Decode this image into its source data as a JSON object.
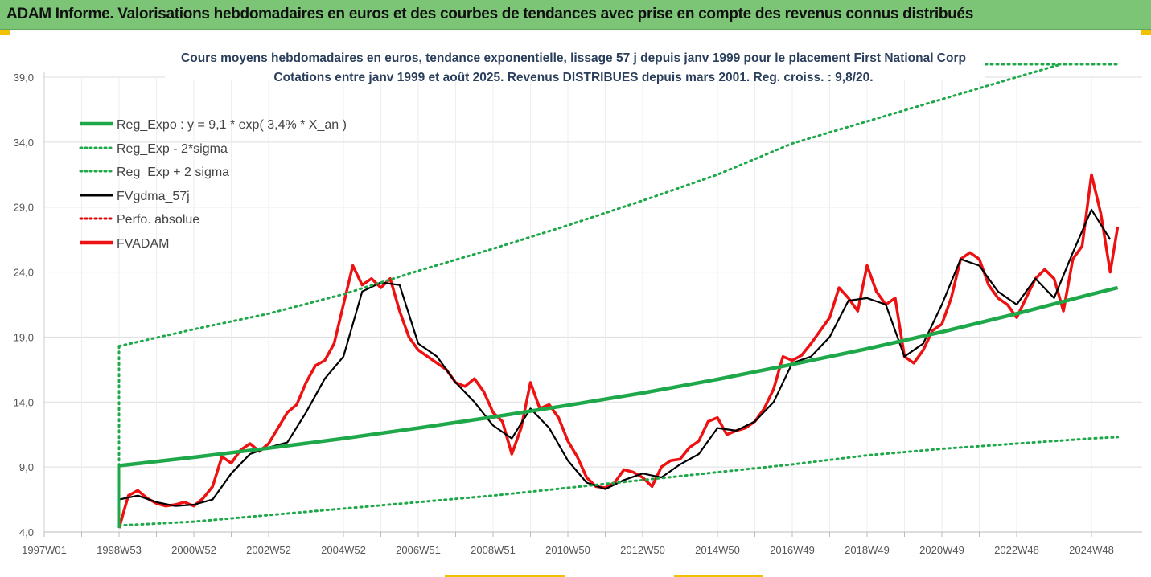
{
  "banner": {
    "title": "ADAM Informe. Valorisations hebdomadaires en euros et des courbes de tendances avec prise en compte des revenus connus distribués"
  },
  "colors": {
    "banner_bg": "#7cc576",
    "reg_expo": "#1ea84a",
    "sigma": "#1ea84a",
    "fvgdma": "#000000",
    "perfo": "#e00000",
    "fvadam": "#ee1111",
    "grid": "#dddddd"
  },
  "chart_data": {
    "type": "line",
    "title": [
      "Cours moyens hebdomadaires en euros, tendance exponentielle, lissage 57 j depuis janv 1999  pour le placement First National Corp",
      "Cotations entre janv 1999 et août 2025.  Revenus DISTRIBUES depuis mars 2001. Reg. croiss. : 9,8/20."
    ],
    "xlabel": "",
    "ylabel": "",
    "ylim": [
      4.0,
      40.0
    ],
    "yticks": [
      "4,0",
      "9,0",
      "14,0",
      "19,0",
      "24,0",
      "29,0",
      "34,0",
      "39,0"
    ],
    "yticks_values": [
      4,
      9,
      14,
      19,
      24,
      29,
      34,
      39
    ],
    "xlim": [
      1997.0,
      2025.8
    ],
    "xticks": [
      "1997W01",
      "1998W53",
      "2000W52",
      "2002W52",
      "2004W52",
      "2006W51",
      "2008W51",
      "2010W50",
      "2012W50",
      "2014W50",
      "2016W49",
      "2018W49",
      "2020W49",
      "2022W48",
      "2024W48"
    ],
    "xticks_values": [
      1997.0,
      1999.0,
      2001.0,
      2003.0,
      2005.0,
      2007.0,
      2009.0,
      2011.0,
      2013.0,
      2015.0,
      2017.0,
      2019.0,
      2021.0,
      2023.0,
      2025.0
    ],
    "grid": true,
    "legend_position": "top-left",
    "series": [
      {
        "name": "Reg_Expo : y = 9,1 * exp( 3,4% *  X_an )",
        "style": "solid-thick",
        "x": [
          1999.0,
          2001.0,
          2003.0,
          2005.0,
          2007.0,
          2009.0,
          2011.0,
          2013.0,
          2015.0,
          2017.0,
          2019.0,
          2021.0,
          2023.0,
          2025.0,
          2025.7
        ],
        "y": [
          9.1,
          9.75,
          10.45,
          11.2,
          12.0,
          12.85,
          13.75,
          14.7,
          15.75,
          16.9,
          18.1,
          19.4,
          20.8,
          22.3,
          22.8
        ]
      },
      {
        "name": "Reg_Exp - 2*sigma",
        "style": "dotted",
        "x": [
          1999.0,
          2001.0,
          2003.0,
          2005.0,
          2007.0,
          2009.0,
          2011.0,
          2013.0,
          2015.0,
          2017.0,
          2019.0,
          2021.0,
          2023.0,
          2025.0,
          2025.7
        ],
        "y": [
          4.5,
          4.8,
          5.3,
          5.8,
          6.3,
          6.8,
          7.4,
          8.0,
          8.6,
          9.2,
          9.9,
          10.4,
          10.8,
          11.2,
          11.3
        ]
      },
      {
        "name": "Reg_Exp + 2 sigma",
        "style": "dotted",
        "x": [
          1999.0,
          2001.0,
          2003.0,
          2005.0,
          2007.0,
          2009.0,
          2011.0,
          2013.0,
          2015.0,
          2017.0,
          2019.0,
          2021.0,
          2023.0,
          2024.2
        ],
        "y": [
          18.3,
          19.6,
          20.8,
          22.3,
          24.1,
          25.8,
          27.6,
          29.5,
          31.5,
          33.9,
          35.6,
          37.3,
          39.0,
          40.0
        ]
      },
      {
        "name": "FVgdma_57j",
        "style": "solid",
        "x": [
          1999.0,
          1999.5,
          2000.0,
          2000.5,
          2001.0,
          2001.5,
          2002.0,
          2002.5,
          2003.0,
          2003.5,
          2004.0,
          2004.5,
          2005.0,
          2005.5,
          2006.0,
          2006.5,
          2007.0,
          2007.5,
          2008.0,
          2008.5,
          2009.0,
          2009.5,
          2010.0,
          2010.5,
          2011.0,
          2011.5,
          2012.0,
          2012.5,
          2013.0,
          2013.5,
          2014.0,
          2014.5,
          2015.0,
          2015.5,
          2016.0,
          2016.5,
          2017.0,
          2017.5,
          2018.0,
          2018.5,
          2019.0,
          2019.5,
          2020.0,
          2020.5,
          2021.0,
          2021.5,
          2022.0,
          2022.5,
          2023.0,
          2023.5,
          2024.0,
          2024.5,
          2025.0,
          2025.5
        ],
        "y": [
          6.5,
          6.8,
          6.3,
          6.0,
          6.1,
          6.5,
          8.5,
          10.0,
          10.5,
          10.9,
          13.2,
          15.8,
          17.5,
          22.5,
          23.2,
          23.0,
          18.5,
          17.5,
          15.5,
          14.0,
          12.2,
          11.2,
          13.5,
          12.0,
          9.5,
          7.8,
          7.3,
          8.0,
          8.5,
          8.2,
          9.2,
          10.0,
          12.0,
          11.8,
          12.5,
          14.0,
          17.0,
          17.5,
          19.0,
          21.8,
          22.0,
          21.5,
          17.5,
          18.5,
          21.5,
          25.0,
          24.5,
          22.5,
          21.5,
          23.5,
          22.0,
          25.5,
          28.8,
          26.5
        ]
      },
      {
        "name": "Perfo. absolue",
        "style": "dotted",
        "x": [],
        "y": []
      },
      {
        "name": "FVADAM",
        "style": "solid-thick",
        "x": [
          1999.0,
          1999.25,
          1999.5,
          1999.75,
          2000.0,
          2000.25,
          2000.5,
          2000.75,
          2001.0,
          2001.25,
          2001.5,
          2001.75,
          2002.0,
          2002.25,
          2002.5,
          2002.75,
          2003.0,
          2003.25,
          2003.5,
          2003.75,
          2004.0,
          2004.25,
          2004.5,
          2004.75,
          2005.0,
          2005.25,
          2005.5,
          2005.75,
          2006.0,
          2006.25,
          2006.5,
          2006.75,
          2007.0,
          2007.25,
          2007.5,
          2007.75,
          2008.0,
          2008.25,
          2008.5,
          2008.75,
          2009.0,
          2009.25,
          2009.5,
          2009.75,
          2010.0,
          2010.25,
          2010.5,
          2010.75,
          2011.0,
          2011.25,
          2011.5,
          2011.75,
          2012.0,
          2012.25,
          2012.5,
          2012.75,
          2013.0,
          2013.25,
          2013.5,
          2013.75,
          2014.0,
          2014.25,
          2014.5,
          2014.75,
          2015.0,
          2015.25,
          2015.5,
          2015.75,
          2016.0,
          2016.25,
          2016.5,
          2016.75,
          2017.0,
          2017.25,
          2017.5,
          2017.75,
          2018.0,
          2018.25,
          2018.5,
          2018.75,
          2019.0,
          2019.25,
          2019.5,
          2019.75,
          2020.0,
          2020.25,
          2020.5,
          2020.75,
          2021.0,
          2021.25,
          2021.5,
          2021.75,
          2022.0,
          2022.25,
          2022.5,
          2022.75,
          2023.0,
          2023.25,
          2023.5,
          2023.75,
          2024.0,
          2024.25,
          2024.5,
          2024.75,
          2025.0,
          2025.25,
          2025.5,
          2025.7
        ],
        "y": [
          4.3,
          6.8,
          7.2,
          6.6,
          6.2,
          6.0,
          6.1,
          6.3,
          6.0,
          6.6,
          7.5,
          9.8,
          9.3,
          10.3,
          10.8,
          10.2,
          10.8,
          12.0,
          13.2,
          13.8,
          15.5,
          16.8,
          17.2,
          18.5,
          21.5,
          24.5,
          23.0,
          23.5,
          22.8,
          23.5,
          21.0,
          19.0,
          18.0,
          17.5,
          17.0,
          16.5,
          15.5,
          15.2,
          15.8,
          14.8,
          13.2,
          12.5,
          10.0,
          12.0,
          15.5,
          13.5,
          13.8,
          12.8,
          11.0,
          9.8,
          8.2,
          7.5,
          7.4,
          7.8,
          8.8,
          8.6,
          8.2,
          7.5,
          9.0,
          9.5,
          9.6,
          10.5,
          11.0,
          12.5,
          12.8,
          11.5,
          11.8,
          12.0,
          12.5,
          13.5,
          15.0,
          17.5,
          17.2,
          17.6,
          18.5,
          19.5,
          20.5,
          22.8,
          22.0,
          21.0,
          24.5,
          22.5,
          21.5,
          22.0,
          17.5,
          17.0,
          18.0,
          19.5,
          20.0,
          22.0,
          25.0,
          25.5,
          25.0,
          23.0,
          22.0,
          21.5,
          20.5,
          22.0,
          23.5,
          24.2,
          23.5,
          21.0,
          25.0,
          26.0,
          31.5,
          28.5,
          24.0,
          27.5
        ]
      }
    ]
  }
}
